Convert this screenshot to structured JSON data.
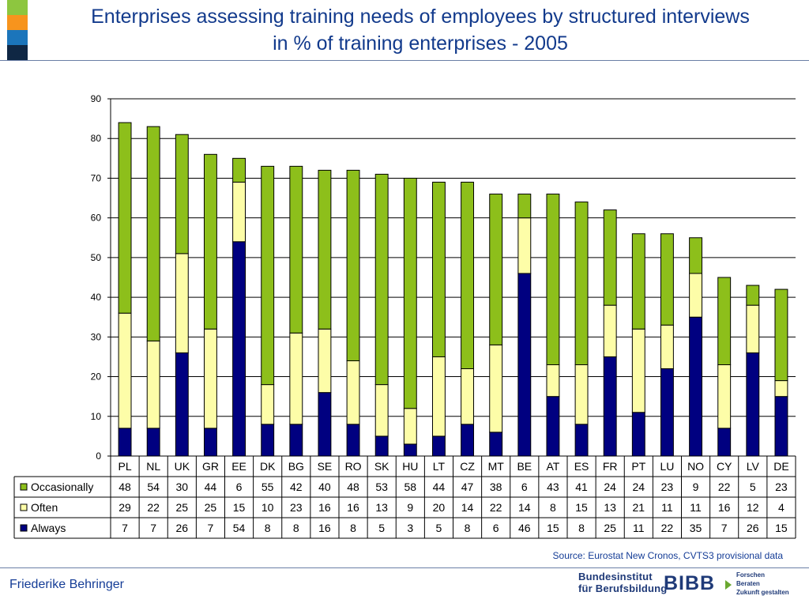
{
  "title_line1": "Enterprises assessing training needs of employees by structured interviews",
  "title_line2": "in % of training enterprises - 2005",
  "source": "Source: Eurostat New Cronos, CVTS3 provisional data",
  "author": "Friederike Behringer",
  "logo": {
    "institute": "Bundesinstitut\nfür Berufsbildung",
    "mark": "BIBB",
    "tagline": "Forschen\nBeraten\nZukunft gestalten"
  },
  "decoration_colors": [
    "#8dc63f",
    "#f7941d",
    "#1b75bb",
    "#0f2744"
  ],
  "chart_data": {
    "type": "bar",
    "stacked": true,
    "data_table": true,
    "categories": [
      "PL",
      "NL",
      "UK",
      "GR",
      "EE",
      "DK",
      "BG",
      "SE",
      "RO",
      "SK",
      "HU",
      "LT",
      "CZ",
      "MT",
      "BE",
      "AT",
      "ES",
      "FR",
      "PT",
      "LU",
      "NO",
      "CY",
      "LV",
      "DE"
    ],
    "series": [
      {
        "name": "Occasionally",
        "color": "#8dbf1b",
        "values": [
          48,
          54,
          30,
          44,
          6,
          55,
          42,
          40,
          48,
          53,
          58,
          44,
          47,
          38,
          6,
          43,
          41,
          24,
          24,
          23,
          9,
          22,
          5,
          23
        ]
      },
      {
        "name": "Often",
        "color": "#fdfda8",
        "values": [
          29,
          22,
          25,
          25,
          15,
          10,
          23,
          16,
          16,
          13,
          9,
          20,
          14,
          22,
          14,
          8,
          15,
          13,
          21,
          11,
          11,
          16,
          12,
          4
        ]
      },
      {
        "name": "Always",
        "color": "#000080",
        "values": [
          7,
          7,
          26,
          7,
          54,
          8,
          8,
          16,
          8,
          5,
          3,
          5,
          8,
          6,
          46,
          15,
          8,
          25,
          11,
          22,
          35,
          7,
          26,
          15
        ]
      }
    ],
    "stack_order_bottom_to_top": [
      "Always",
      "Often",
      "Occasionally"
    ],
    "ylim": [
      0,
      90
    ],
    "yticks": [
      0,
      10,
      20,
      30,
      40,
      50,
      60,
      70,
      80,
      90
    ],
    "grid": true
  }
}
